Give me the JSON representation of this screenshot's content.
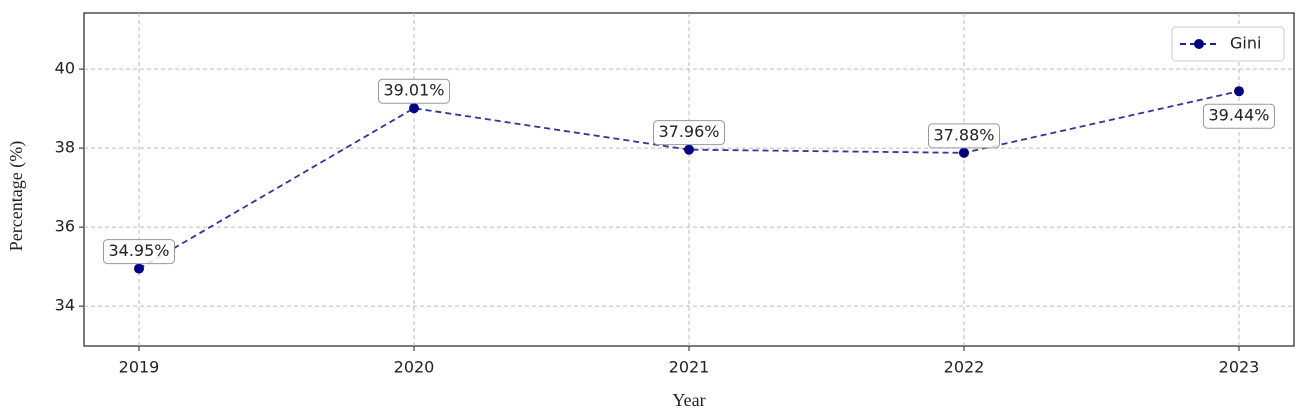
{
  "chart_data": {
    "type": "line",
    "x_label": "Year",
    "y_label": "Percentage (%)",
    "x": [
      2019,
      2020,
      2021,
      2022,
      2023
    ],
    "series": [
      {
        "name": "Gini",
        "color": "#000080",
        "values": [
          34.95,
          39.01,
          37.96,
          37.88,
          39.44
        ],
        "value_labels": [
          "34.95%",
          "39.01%",
          "37.96%",
          "37.88%",
          "39.44%"
        ]
      }
    ],
    "xlim": [
      2018.8,
      2023.2
    ],
    "xticks": [
      2019,
      2020,
      2021,
      2022,
      2023
    ],
    "ylim": [
      32.99,
      41.42
    ],
    "yticks": [
      34,
      36,
      38,
      40
    ],
    "grid": true,
    "legend": "upper right",
    "line_style": "dashed"
  }
}
